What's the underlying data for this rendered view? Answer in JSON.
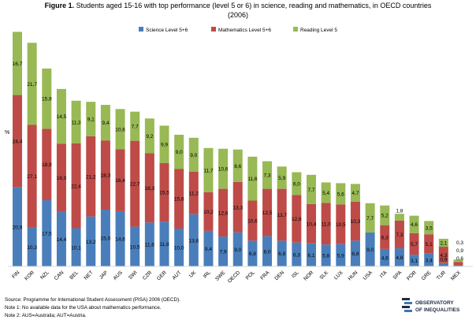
{
  "figure_label": "Figure 1.",
  "title_line1": "Students aged 15-16 with top performance (level 5 or 6) in science, reading and mathematics, in OECD countries",
  "title_line2": "(2006)",
  "y_axis_label": "%",
  "notes": [
    "Source: Programme for International Student Assessment (PISA) 2006 (OECD).",
    "Note 1: No available data for the USA about mathematics performance.",
    "Note 2: AUS=Australia; AUT=Austria."
  ],
  "logo": {
    "line1": "OBSERVATORY",
    "line2": "OF INEQUALITIES"
  },
  "colors": {
    "science": "#4a7ebb",
    "mathematics": "#be4b48",
    "reading": "#98b954"
  },
  "chart_data": {
    "type": "bar",
    "stacked": true,
    "categories": [
      "FIN",
      "KOR",
      "NZL",
      "CAN",
      "BEL",
      "NET",
      "JAP",
      "AUS",
      "SWI",
      "CZR",
      "GER",
      "AUT",
      "UK",
      "IRL",
      "SWE",
      "OECD",
      "POL",
      "FRA",
      "DEN",
      "ISL",
      "NOR",
      "SLK",
      "LUX",
      "HUN",
      "USA",
      "ITA",
      "SPA",
      "POR",
      "GRE",
      "TUR",
      "MEX"
    ],
    "series": [
      {
        "name": "Science Level 5+6",
        "values": [
          20.9,
          10.3,
          17.5,
          14.4,
          10.1,
          13.2,
          15.0,
          14.6,
          10.5,
          11.6,
          11.8,
          10.0,
          13.8,
          9.4,
          7.9,
          9.0,
          6.8,
          8.0,
          6.8,
          6.3,
          6.1,
          5.8,
          5.9,
          6.8,
          9.0,
          4.6,
          4.8,
          3.1,
          3.4,
          0.9,
          0.3
        ]
      },
      {
        "name": "Mathematics Level 5+6",
        "values": [
          24.4,
          27.1,
          18.9,
          18.0,
          22.4,
          21.2,
          18.3,
          16.4,
          22.7,
          18.3,
          15.5,
          15.8,
          11.2,
          10.2,
          12.6,
          13.3,
          10.6,
          12.5,
          13.7,
          12.6,
          10.4,
          11.0,
          10.5,
          10.3,
          null,
          6.3,
          7.3,
          5.7,
          5.1,
          4.3,
          0.9
        ]
      },
      {
        "name": "Reading Level 5",
        "values": [
          16.7,
          21.7,
          15.9,
          14.5,
          11.3,
          9.1,
          9.4,
          10.6,
          7.7,
          9.2,
          9.9,
          9.0,
          9.0,
          11.7,
          10.6,
          8.6,
          11.6,
          7.3,
          5.9,
          6.0,
          7.7,
          5.4,
          5.6,
          4.7,
          7.7,
          5.2,
          1.8,
          4.6,
          3.5,
          2.1,
          0.6
        ]
      }
    ],
    "xlabel": "",
    "ylabel": "%",
    "grid": false,
    "legend_position": "top"
  }
}
